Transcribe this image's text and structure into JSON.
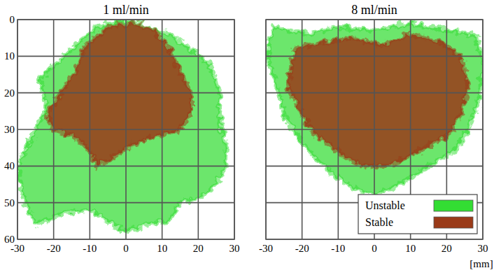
{
  "chart_data": [
    {
      "type": "area",
      "title": "1 ml/min",
      "xlim": [
        -30,
        30
      ],
      "ylim": [
        60,
        0
      ],
      "xticks": [
        -30,
        -20,
        -10,
        0,
        10,
        20,
        30
      ],
      "yticks": [
        0,
        10,
        20,
        30,
        40,
        50,
        60
      ],
      "grid": true,
      "series": [
        {
          "color": "#33dd33",
          "x": [
            -8,
            0,
            6,
            12,
            18,
            23,
            26,
            26,
            28,
            27,
            22,
            15,
            12,
            5,
            0,
            -5,
            -10,
            -18,
            -25,
            -28,
            -30,
            -26,
            -22,
            -24,
            -17,
            -12
          ],
          "values": [
            2,
            0,
            2,
            4,
            8,
            12,
            20,
            28,
            35,
            42,
            48,
            50,
            55,
            56,
            58,
            55,
            52,
            53,
            56,
            50,
            40,
            32,
            24,
            16,
            10,
            5
          ]
        },
        {
          "color": "#9a3a18",
          "x": [
            -5,
            2,
            8,
            12,
            15,
            18,
            18,
            15,
            8,
            2,
            -4,
            -8,
            -10,
            -14,
            -20,
            -22,
            -18,
            -14,
            -12
          ],
          "values": [
            2,
            1,
            3,
            8,
            14,
            20,
            26,
            30,
            32,
            34,
            38,
            40,
            36,
            32,
            30,
            26,
            20,
            14,
            8
          ]
        }
      ]
    },
    {
      "type": "area",
      "title": "8 ml/min",
      "x_label": "[mm]",
      "xlim": [
        -30,
        30
      ],
      "ylim": [
        60,
        0
      ],
      "xticks": [
        -30,
        -20,
        -10,
        0,
        10,
        20,
        30
      ],
      "yticks": [
        0,
        10,
        20,
        30,
        40,
        50,
        60
      ],
      "grid": true,
      "tick_labels": "x",
      "legend": "lower right",
      "series": [
        {
          "name": "Unstable",
          "color": "#33dd33",
          "x": [
            -28,
            -18,
            -10,
            0,
            10,
            20,
            28,
            30,
            29,
            26,
            22,
            12,
            5,
            0,
            -8,
            -14,
            -20,
            -25,
            -27,
            -30
          ],
          "values": [
            2,
            4,
            2,
            3,
            1,
            3,
            4,
            12,
            22,
            30,
            36,
            42,
            46,
            48,
            45,
            40,
            34,
            26,
            18,
            10
          ]
        },
        {
          "name": "Stable",
          "color": "#9a3a18",
          "x": [
            -22,
            -14,
            -6,
            2,
            10,
            18,
            24,
            26,
            24,
            20,
            12,
            4,
            -4,
            -10,
            -16,
            -20,
            -24
          ],
          "values": [
            8,
            6,
            5,
            7,
            4,
            6,
            10,
            18,
            26,
            32,
            36,
            40,
            40,
            36,
            32,
            26,
            18
          ]
        }
      ]
    }
  ]
}
